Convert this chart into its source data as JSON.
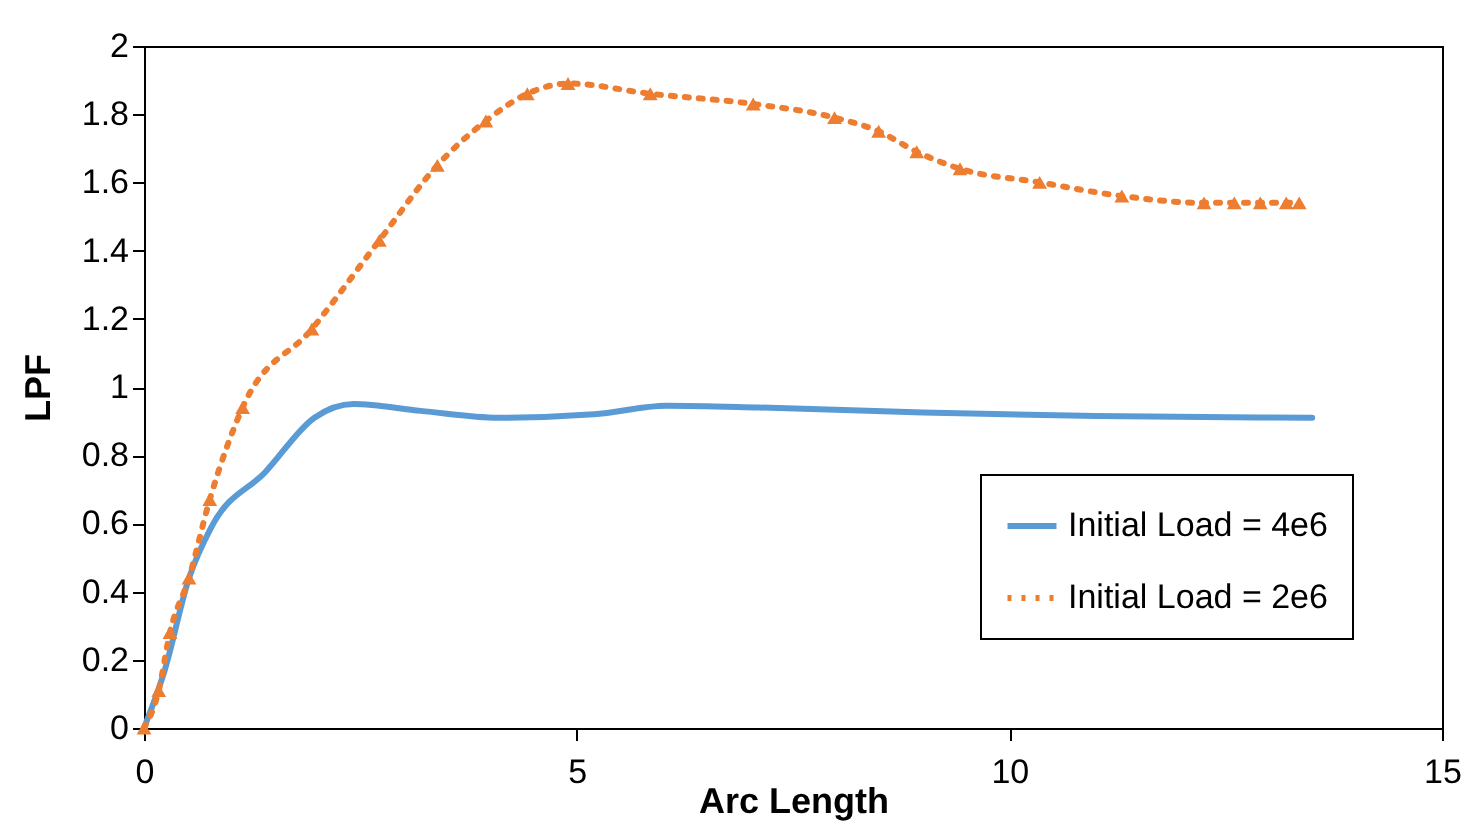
{
  "chart_data": {
    "type": "line",
    "xlabel": "Arc Length",
    "ylabel": "LPF",
    "xlim": [
      0,
      15
    ],
    "xticks": [
      0,
      5,
      10,
      15
    ],
    "ylim": [
      0,
      2
    ],
    "yticks": [
      0,
      0.2,
      0.4,
      0.6,
      0.8,
      1,
      1.2,
      1.4,
      1.6,
      1.8,
      2
    ],
    "grid": false,
    "legend": "bottom right",
    "series": [
      {
        "name": "Initial Load = 4e6",
        "color": "#5b9bd5",
        "marker": "none",
        "line_style": "solid",
        "x": [
          0,
          0.24,
          0.52,
          0.78,
          1.4,
          1.97,
          2.42,
          3.2,
          4.1,
          5.2,
          6.04,
          7.1,
          9,
          11,
          13.5
        ],
        "values": [
          0,
          0.17,
          0.44,
          0.59,
          0.75,
          0.91,
          0.95,
          0.93,
          0.91,
          0.92,
          0.945,
          0.94,
          0.925,
          0.915,
          0.91
        ]
      },
      {
        "name": "Initial Load = 2e6",
        "color": "#ed7d31",
        "marker": "triangle",
        "line_style": "dotted",
        "x": [
          0,
          0.17,
          0.3,
          0.52,
          0.76,
          1.14,
          1.94,
          2.72,
          3.39,
          3.95,
          4.43,
          4.9,
          5.85,
          7.04,
          7.98,
          8.49,
          8.93,
          9.43,
          10.35,
          11.3,
          12.25,
          12.6,
          12.9,
          13.2,
          13.35
        ],
        "values": [
          0,
          0.11,
          0.28,
          0.44,
          0.67,
          0.94,
          1.17,
          1.43,
          1.65,
          1.78,
          1.86,
          1.89,
          1.86,
          1.83,
          1.79,
          1.75,
          1.69,
          1.64,
          1.6,
          1.56,
          1.54,
          1.54,
          1.54,
          1.54,
          1.54
        ]
      }
    ]
  }
}
